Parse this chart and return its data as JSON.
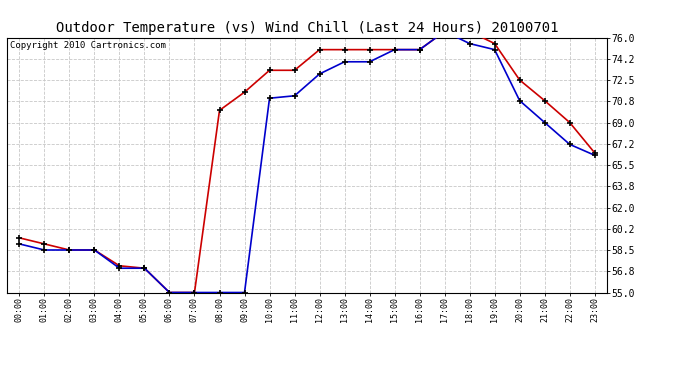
{
  "title": "Outdoor Temperature (vs) Wind Chill (Last 24 Hours) 20100701",
  "copyright": "Copyright 2010 Cartronics.com",
  "hours": [
    "00:00",
    "01:00",
    "02:00",
    "03:00",
    "04:00",
    "05:00",
    "06:00",
    "07:00",
    "08:00",
    "09:00",
    "10:00",
    "11:00",
    "12:00",
    "13:00",
    "14:00",
    "15:00",
    "16:00",
    "17:00",
    "18:00",
    "19:00",
    "20:00",
    "21:00",
    "22:00",
    "23:00"
  ],
  "outdoor_temp": [
    59.5,
    59.0,
    58.5,
    58.5,
    57.2,
    57.0,
    55.0,
    55.0,
    70.0,
    71.5,
    73.3,
    73.3,
    75.0,
    75.0,
    75.0,
    75.0,
    75.0,
    76.5,
    76.5,
    75.5,
    72.5,
    70.8,
    69.0,
    66.5
  ],
  "wind_chill": [
    59.0,
    58.5,
    58.5,
    58.5,
    57.0,
    57.0,
    55.0,
    55.0,
    55.0,
    55.0,
    71.0,
    71.2,
    73.0,
    74.0,
    74.0,
    75.0,
    75.0,
    76.5,
    75.5,
    75.0,
    70.8,
    69.0,
    67.2,
    66.3
  ],
  "temp_color": "#cc0000",
  "wind_color": "#0000cc",
  "ylim_min": 55.0,
  "ylim_max": 76.0,
  "yticks": [
    55.0,
    56.8,
    58.5,
    60.2,
    62.0,
    63.8,
    65.5,
    67.2,
    69.0,
    70.8,
    72.5,
    74.2,
    76.0
  ],
  "background_color": "#ffffff",
  "grid_color": "#c8c8c8",
  "title_fontsize": 10,
  "copyright_fontsize": 6.5,
  "fig_width": 6.9,
  "fig_height": 3.75,
  "dpi": 100
}
